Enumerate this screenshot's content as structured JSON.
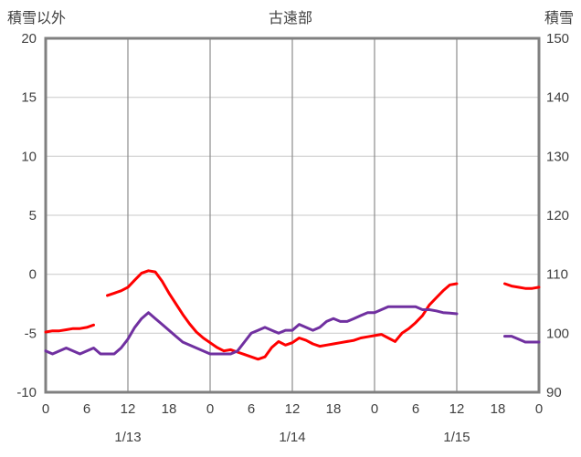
{
  "chart_data": {
    "type": "line",
    "title": "古遠部",
    "left_axis": {
      "label": "積雪以外",
      "min": -10,
      "max": 20,
      "ticks": [
        20,
        15,
        10,
        5,
        0,
        -5,
        -10
      ]
    },
    "right_axis": {
      "label": "積雪",
      "min": 90,
      "max": 150,
      "ticks": [
        150,
        140,
        130,
        120,
        110,
        100,
        90
      ]
    },
    "x_axis": {
      "min": 0,
      "max": 72,
      "unit": "hour",
      "ticks": [
        {
          "hour": 0,
          "label": "0"
        },
        {
          "hour": 6,
          "label": "6"
        },
        {
          "hour": 12,
          "label": "12"
        },
        {
          "hour": 18,
          "label": "18"
        },
        {
          "hour": 24,
          "label": "0"
        },
        {
          "hour": 30,
          "label": "6"
        },
        {
          "hour": 36,
          "label": "12"
        },
        {
          "hour": 42,
          "label": "18"
        },
        {
          "hour": 48,
          "label": "0"
        },
        {
          "hour": 54,
          "label": "6"
        },
        {
          "hour": 60,
          "label": "12"
        },
        {
          "hour": 66,
          "label": "18"
        },
        {
          "hour": 72,
          "label": "0"
        }
      ],
      "date_labels": [
        {
          "hour": 12,
          "label": "1/13"
        },
        {
          "hour": 36,
          "label": "1/14"
        },
        {
          "hour": 60,
          "label": "1/15"
        }
      ],
      "gridline_hours": [
        12,
        24,
        36,
        48,
        60
      ]
    },
    "colors": {
      "border": "#808080",
      "grid_horizontal": "#c9c9c9",
      "grid_vertical": "#8c8c8c",
      "text": "#404040",
      "red_series": "#ff0000",
      "purple_series": "#7030a0"
    },
    "series": [
      {
        "name": "red",
        "axis": "left",
        "color": "#ff0000",
        "values": [
          -4.9,
          -4.8,
          -4.8,
          -4.7,
          -4.6,
          -4.6,
          -4.5,
          -4.3,
          null,
          -1.8,
          -1.6,
          -1.4,
          -1.1,
          -0.5,
          0.1,
          0.3,
          0.2,
          -0.6,
          -1.6,
          -2.5,
          -3.4,
          -4.2,
          -4.9,
          -5.4,
          -5.8,
          -6.2,
          -6.5,
          -6.4,
          -6.6,
          -6.8,
          -7.0,
          -7.2,
          -7.0,
          -6.2,
          -5.7,
          -6.0,
          -5.8,
          -5.4,
          -5.6,
          -5.9,
          -6.1,
          -6.0,
          -5.9,
          -5.8,
          -5.7,
          -5.6,
          -5.4,
          -5.3,
          -5.2,
          -5.1,
          -5.4,
          -5.7,
          -5.0,
          -4.6,
          -4.1,
          -3.5,
          -2.6,
          -2.0,
          -1.4,
          -0.9,
          -0.8,
          null,
          null,
          null,
          null,
          null,
          null,
          -0.8,
          -1.0,
          -1.1,
          -1.2,
          -1.2,
          -1.1
        ]
      },
      {
        "name": "purple",
        "axis": "right",
        "color": "#7030a0",
        "values": [
          97,
          96.5,
          97,
          97.5,
          97,
          96.5,
          97,
          97.5,
          96.5,
          96.5,
          96.5,
          97.5,
          99,
          101,
          102.5,
          103.5,
          102.5,
          101.5,
          100.5,
          99.5,
          98.5,
          98,
          97.5,
          97,
          96.5,
          96.5,
          96.5,
          96.5,
          97,
          98.5,
          100,
          100.5,
          101,
          100.5,
          100,
          100.5,
          100.5,
          101.5,
          101,
          100.5,
          101,
          102,
          102.5,
          102,
          102,
          102.5,
          103,
          103.5,
          103.5,
          104,
          104.5,
          104.5,
          104.5,
          104.5,
          104.5,
          104,
          104,
          103.8,
          103.5,
          103.4,
          103.3,
          null,
          null,
          null,
          null,
          null,
          null,
          99.5,
          99.5,
          99,
          98.5,
          98.5,
          98.5
        ]
      }
    ]
  }
}
